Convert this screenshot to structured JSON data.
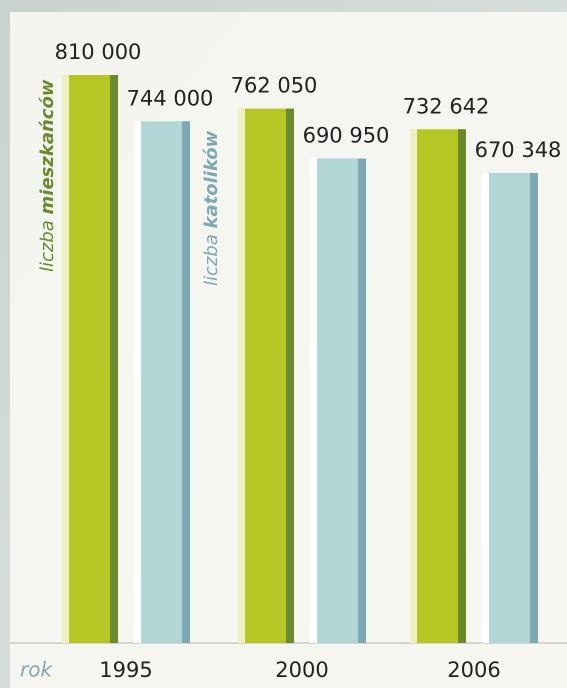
{
  "chart_data": {
    "type": "bar",
    "categories": [
      "1995",
      "2000",
      "2006"
    ],
    "x_label": "rok",
    "series": [
      {
        "name": "liczba mieszkańców",
        "color": "#b5c625",
        "values": [
          810000,
          762050,
          732642
        ],
        "value_labels": [
          "810 000",
          "762 050",
          "732 642"
        ]
      },
      {
        "name": "liczba katolików",
        "color": "#b2d5d6",
        "values": [
          744000,
          690950,
          670348
        ],
        "value_labels": [
          "744 000",
          "690 950",
          "670 348"
        ]
      }
    ],
    "ylim": [
      0,
      917000
    ]
  }
}
